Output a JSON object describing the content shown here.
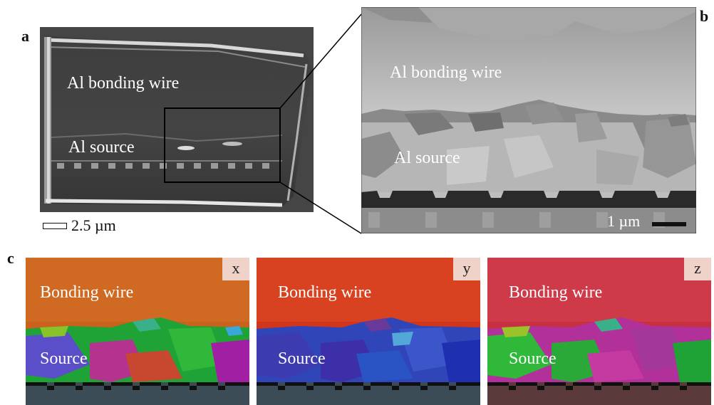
{
  "panels": {
    "a": {
      "letter": "a",
      "labels": [
        "Al bonding wire",
        "Al source"
      ],
      "scale_bar": "2.5 µm"
    },
    "b": {
      "letter": "b",
      "labels": [
        "Al bonding wire",
        "Al  source"
      ],
      "scale_bar": "1 µm"
    },
    "c": {
      "letter": "c",
      "maps": [
        {
          "axis": "x",
          "wire_label": "Bonding wire",
          "source_label": "Source"
        },
        {
          "axis": "y",
          "wire_label": "Bonding wire",
          "source_label": "Source"
        },
        {
          "axis": "z",
          "wire_label": "Bonding wire",
          "source_label": "Source"
        }
      ]
    }
  },
  "colors": {
    "sem_dark": "#3a3a3a",
    "sem_light": "#cfcfcf",
    "map_x_wire": "#c8621c",
    "map_y_wire": "#d2361a",
    "map_z_wire": "#c73040",
    "badge_bg": "#f0d3c8"
  }
}
